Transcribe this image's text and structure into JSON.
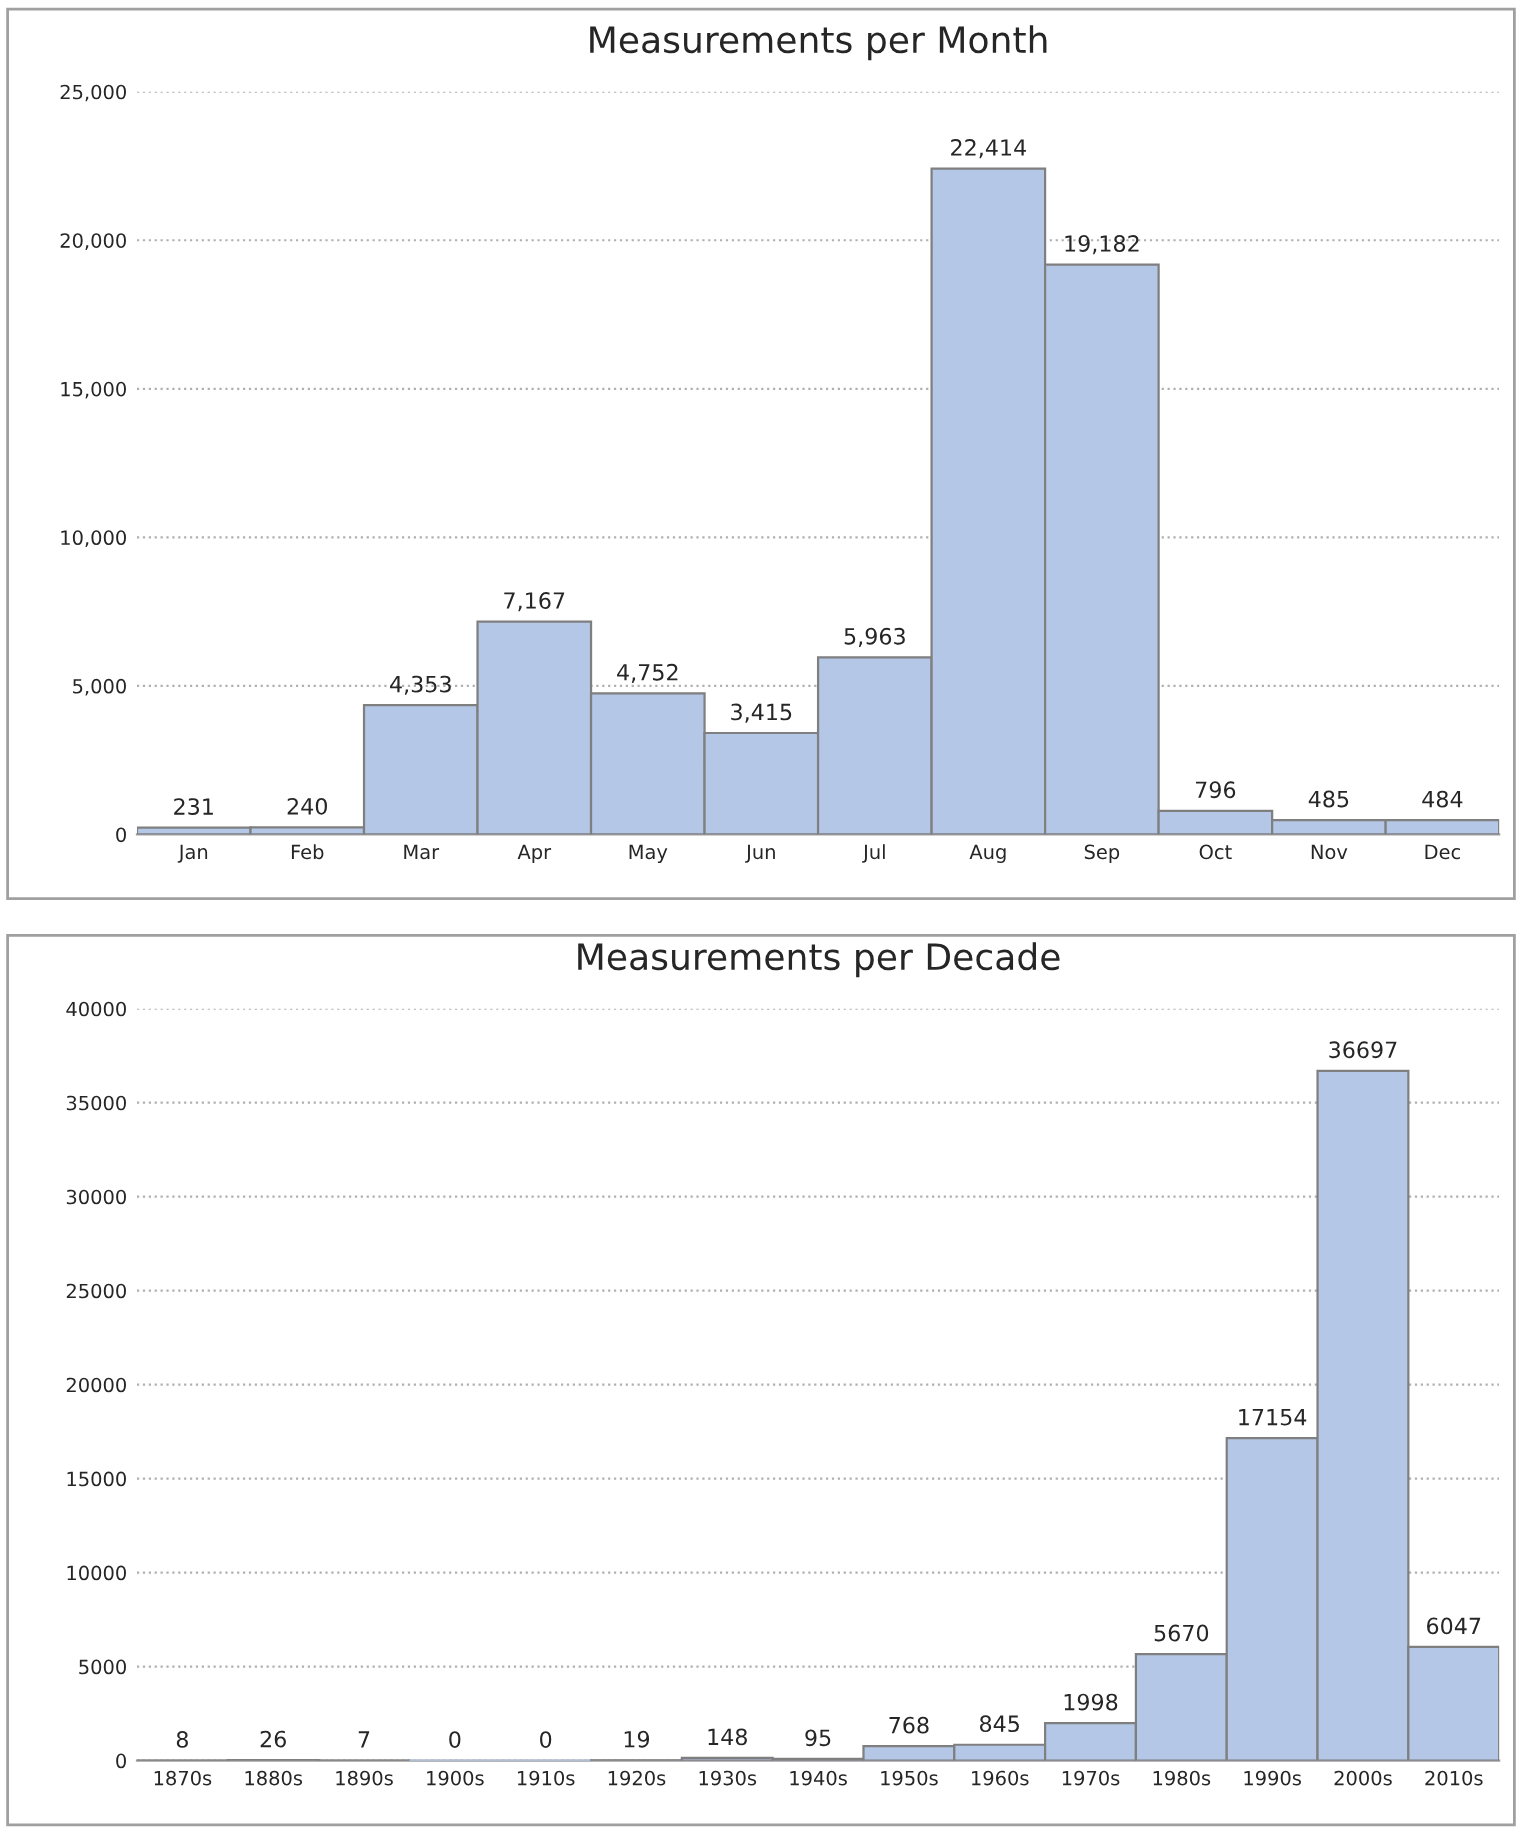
{
  "chart_data": [
    {
      "type": "bar",
      "title": "Measurements per Month",
      "categories": [
        "Jan",
        "Feb",
        "Mar",
        "Apr",
        "May",
        "Jun",
        "Jul",
        "Aug",
        "Sep",
        "Oct",
        "Nov",
        "Dec"
      ],
      "values": [
        231,
        240,
        4353,
        7167,
        4752,
        3415,
        5963,
        22414,
        19182,
        796,
        485,
        484
      ],
      "value_labels": [
        "231",
        "240",
        "4,353",
        "7,167",
        "4,752",
        "3,415",
        "5,963",
        "22,414",
        "19,182",
        "796",
        "485",
        "484"
      ],
      "color": "#b4c7e7",
      "ylim": [
        0,
        25000
      ],
      "yticks": [
        0,
        {
          "value": 5000,
          "label": "5,000"
        },
        {
          "value": 10000,
          "label": "10,000"
        },
        {
          "value": 15000,
          "label": "15,000"
        },
        {
          "value": 20000,
          "label": "20,000"
        },
        {
          "value": 25000,
          "label": "25,000"
        }
      ],
      "grid": "y"
    },
    {
      "type": "bar",
      "title": "Measurements per Decade",
      "categories": [
        "1870s",
        "1880s",
        "1890s",
        "1900s",
        "1910s",
        "1920s",
        "1930s",
        "1940s",
        "1950s",
        "1960s",
        "1970s",
        "1980s",
        "1990s",
        "2000s",
        "2010s"
      ],
      "values": [
        8,
        26,
        7,
        0,
        0,
        19,
        148,
        95,
        768,
        845,
        1998,
        5670,
        17154,
        36697,
        6047
      ],
      "data_labels": true,
      "color": "#b4c7e7",
      "ylim": [
        0,
        40000
      ],
      "yticks": [
        0,
        5000,
        10000,
        15000,
        20000,
        25000,
        30000,
        35000,
        40000
      ],
      "grid": "y"
    }
  ]
}
